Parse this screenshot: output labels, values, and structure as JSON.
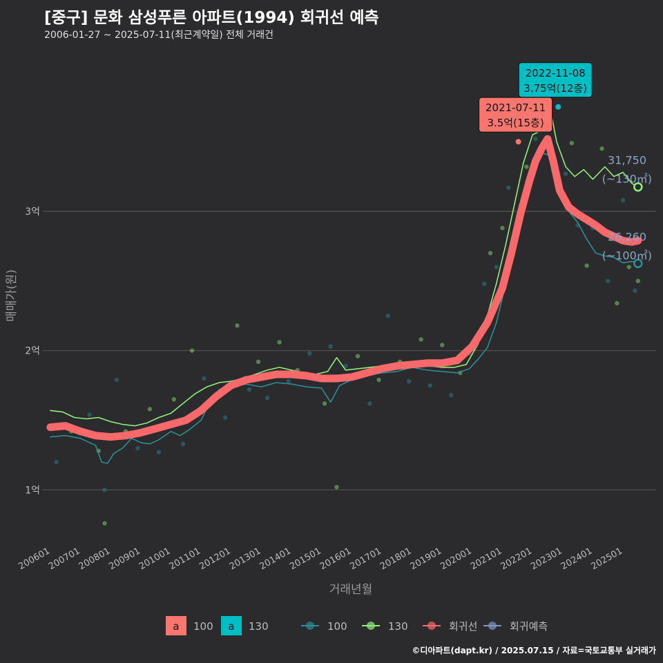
{
  "header": {
    "title": "[중구] 문화 삼성푸른 아파트(1994) 회귀선 예측",
    "subtitle": "2006-01-27 ~ 2025-07-11(최근계약일) 전체 거래건"
  },
  "footer": {
    "credit": "©디아파트(dapt.kr) / 2025.07.15 / 자료=국토교통부 실거래가"
  },
  "colors": {
    "background": "#2b2b2d",
    "series_100": "#2a8f96",
    "series_130": "#90ee7a",
    "regression": "#f8696b",
    "forecast": "#7f95c8",
    "label_100_fill": "#f8766d",
    "label_130_fill": "#00bfc4",
    "end_label": "#8aa6c8"
  },
  "chart_data": {
    "type": "line",
    "xlabel": "거래년월",
    "ylabel": "매매가(원)",
    "ylim": [
      6000,
      4200
    ],
    "x_ticks": [
      "200601",
      "200701",
      "200801",
      "200901",
      "201001",
      "201101",
      "201201",
      "201301",
      "201401",
      "201501",
      "201601",
      "201701",
      "201801",
      "201901",
      "202001",
      "202101",
      "202201",
      "202301",
      "202401",
      "202501"
    ],
    "y_ticks": [
      {
        "value": 10000,
        "label": "1억"
      },
      {
        "value": 20000,
        "label": "2억"
      },
      {
        "value": 30000,
        "label": "3억"
      }
    ],
    "series": [
      {
        "name": "100",
        "points": [
          [
            2006.0,
            13800
          ],
          [
            2006.5,
            13900
          ],
          [
            2007.0,
            13700
          ],
          [
            2007.2,
            13500
          ],
          [
            2007.5,
            13200
          ],
          [
            2007.7,
            12000
          ],
          [
            2007.9,
            11900
          ],
          [
            2008.1,
            12600
          ],
          [
            2008.4,
            13000
          ],
          [
            2008.7,
            13700
          ],
          [
            2009.0,
            13400
          ],
          [
            2009.3,
            13300
          ],
          [
            2009.6,
            13600
          ],
          [
            2010.0,
            14200
          ],
          [
            2010.3,
            13900
          ],
          [
            2010.6,
            14300
          ],
          [
            2011.0,
            15000
          ],
          [
            2011.3,
            16300
          ],
          [
            2011.6,
            17200
          ],
          [
            2012.0,
            17400
          ],
          [
            2012.5,
            17600
          ],
          [
            2013.0,
            17400
          ],
          [
            2013.5,
            17700
          ],
          [
            2014.0,
            17600
          ],
          [
            2014.5,
            17400
          ],
          [
            2015.0,
            17300
          ],
          [
            2015.3,
            16300
          ],
          [
            2015.6,
            17500
          ],
          [
            2016.0,
            17900
          ],
          [
            2016.5,
            18200
          ],
          [
            2017.0,
            18400
          ],
          [
            2017.5,
            18500
          ],
          [
            2018.0,
            18800
          ],
          [
            2018.5,
            18600
          ],
          [
            2019.0,
            18500
          ],
          [
            2019.5,
            18400
          ],
          [
            2019.9,
            18700
          ],
          [
            2020.2,
            19400
          ],
          [
            2020.5,
            20200
          ],
          [
            2020.8,
            22000
          ],
          [
            2021.0,
            23800
          ],
          [
            2021.3,
            26500
          ],
          [
            2021.6,
            29500
          ],
          [
            2021.9,
            31500
          ],
          [
            2022.1,
            33500
          ],
          [
            2022.3,
            34200
          ],
          [
            2022.6,
            34000
          ],
          [
            2022.9,
            32000
          ],
          [
            2023.2,
            30000
          ],
          [
            2023.5,
            29200
          ],
          [
            2023.8,
            28000
          ],
          [
            2024.1,
            27000
          ],
          [
            2024.4,
            26800
          ],
          [
            2024.7,
            26700
          ],
          [
            2025.0,
            26300
          ],
          [
            2025.3,
            26400
          ],
          [
            2025.5,
            26260
          ]
        ],
        "end_label": "26,260",
        "end_sub": "(~100㎡)"
      },
      {
        "name": "130",
        "points": [
          [
            2006.0,
            15700
          ],
          [
            2006.4,
            15600
          ],
          [
            2006.8,
            15200
          ],
          [
            2007.2,
            15100
          ],
          [
            2007.6,
            15200
          ],
          [
            2008.0,
            14900
          ],
          [
            2008.4,
            14700
          ],
          [
            2008.8,
            14600
          ],
          [
            2009.2,
            14800
          ],
          [
            2009.6,
            15200
          ],
          [
            2010.0,
            15500
          ],
          [
            2010.4,
            16200
          ],
          [
            2010.8,
            16900
          ],
          [
            2011.2,
            17400
          ],
          [
            2011.6,
            17700
          ],
          [
            2012.0,
            17800
          ],
          [
            2012.4,
            18000
          ],
          [
            2012.8,
            18300
          ],
          [
            2013.2,
            18600
          ],
          [
            2013.6,
            18800
          ],
          [
            2014.0,
            18600
          ],
          [
            2014.4,
            18400
          ],
          [
            2014.8,
            18300
          ],
          [
            2015.2,
            18500
          ],
          [
            2015.5,
            19500
          ],
          [
            2015.8,
            18600
          ],
          [
            2016.2,
            18700
          ],
          [
            2016.6,
            18800
          ],
          [
            2017.0,
            18900
          ],
          [
            2017.4,
            18900
          ],
          [
            2017.8,
            19000
          ],
          [
            2018.2,
            19000
          ],
          [
            2018.6,
            18900
          ],
          [
            2019.0,
            18800
          ],
          [
            2019.4,
            18800
          ],
          [
            2019.8,
            19000
          ],
          [
            2020.2,
            20500
          ],
          [
            2020.5,
            22500
          ],
          [
            2020.8,
            24800
          ],
          [
            2021.1,
            27500
          ],
          [
            2021.4,
            30500
          ],
          [
            2021.7,
            33500
          ],
          [
            2022.0,
            35500
          ],
          [
            2022.3,
            35800
          ],
          [
            2022.6,
            37200
          ],
          [
            2022.8,
            35000
          ],
          [
            2023.1,
            33200
          ],
          [
            2023.4,
            32500
          ],
          [
            2023.7,
            33000
          ],
          [
            2024.0,
            32300
          ],
          [
            2024.4,
            33200
          ],
          [
            2024.7,
            32500
          ],
          [
            2025.0,
            32800
          ],
          [
            2025.3,
            32000
          ],
          [
            2025.5,
            31750
          ]
        ],
        "end_label": "31,750",
        "end_sub": "(~130㎡)"
      },
      {
        "name": "회귀선",
        "points": [
          [
            2006.0,
            14500
          ],
          [
            2006.5,
            14600
          ],
          [
            2007.0,
            14200
          ],
          [
            2007.5,
            13900
          ],
          [
            2008.0,
            13800
          ],
          [
            2008.5,
            13900
          ],
          [
            2009.0,
            14100
          ],
          [
            2009.5,
            14400
          ],
          [
            2010.0,
            14700
          ],
          [
            2010.5,
            15000
          ],
          [
            2011.0,
            15700
          ],
          [
            2011.5,
            16700
          ],
          [
            2012.0,
            17500
          ],
          [
            2012.5,
            17900
          ],
          [
            2013.0,
            18100
          ],
          [
            2013.5,
            18300
          ],
          [
            2014.0,
            18300
          ],
          [
            2014.5,
            18200
          ],
          [
            2015.0,
            18000
          ],
          [
            2015.5,
            18000
          ],
          [
            2016.0,
            18100
          ],
          [
            2016.5,
            18400
          ],
          [
            2017.0,
            18700
          ],
          [
            2017.5,
            18900
          ],
          [
            2018.0,
            19000
          ],
          [
            2018.5,
            19100
          ],
          [
            2019.0,
            19100
          ],
          [
            2019.5,
            19300
          ],
          [
            2020.0,
            20300
          ],
          [
            2020.5,
            22000
          ],
          [
            2021.0,
            24500
          ],
          [
            2021.3,
            27000
          ],
          [
            2021.6,
            29800
          ],
          [
            2021.9,
            32200
          ],
          [
            2022.1,
            33600
          ],
          [
            2022.3,
            34500
          ],
          [
            2022.5,
            35200
          ],
          [
            2022.7,
            33500
          ],
          [
            2022.9,
            31500
          ],
          [
            2023.2,
            30300
          ],
          [
            2023.5,
            29800
          ],
          [
            2023.8,
            29400
          ],
          [
            2024.1,
            29000
          ],
          [
            2024.4,
            28500
          ],
          [
            2024.7,
            28200
          ],
          [
            2025.0,
            27900
          ],
          [
            2025.3,
            27800
          ],
          [
            2025.5,
            27900
          ]
        ]
      }
    ],
    "scatter": [
      [
        2006.2,
        12000
      ],
      [
        2006.7,
        14200
      ],
      [
        2007.3,
        15400
      ],
      [
        2007.6,
        12800
      ],
      [
        2007.8,
        10000
      ],
      [
        2007.8,
        7600
      ],
      [
        2008.2,
        17900
      ],
      [
        2008.5,
        14200
      ],
      [
        2008.9,
        13000
      ],
      [
        2009.3,
        15800
      ],
      [
        2009.6,
        12700
      ],
      [
        2010.1,
        16500
      ],
      [
        2010.4,
        13300
      ],
      [
        2010.7,
        20000
      ],
      [
        2011.1,
        18000
      ],
      [
        2011.5,
        16800
      ],
      [
        2011.8,
        15200
      ],
      [
        2012.2,
        21800
      ],
      [
        2012.6,
        17200
      ],
      [
        2012.9,
        19200
      ],
      [
        2013.2,
        16600
      ],
      [
        2013.6,
        20600
      ],
      [
        2013.9,
        17800
      ],
      [
        2014.2,
        18600
      ],
      [
        2014.6,
        19800
      ],
      [
        2015.1,
        16200
      ],
      [
        2015.3,
        20300
      ],
      [
        2015.5,
        10200
      ],
      [
        2015.8,
        18900
      ],
      [
        2016.2,
        19600
      ],
      [
        2016.6,
        16200
      ],
      [
        2016.9,
        17900
      ],
      [
        2017.2,
        22500
      ],
      [
        2017.6,
        19200
      ],
      [
        2017.9,
        17800
      ],
      [
        2018.3,
        20800
      ],
      [
        2018.6,
        17500
      ],
      [
        2019.0,
        20400
      ],
      [
        2019.3,
        16800
      ],
      [
        2019.6,
        18400
      ],
      [
        2019.9,
        19800
      ],
      [
        2020.2,
        21000
      ],
      [
        2020.4,
        24800
      ],
      [
        2020.6,
        27000
      ],
      [
        2020.8,
        26000
      ],
      [
        2021.0,
        28800
      ],
      [
        2021.2,
        31700
      ],
      [
        2021.4,
        28000
      ],
      [
        2021.6,
        30400
      ],
      [
        2021.8,
        33200
      ],
      [
        2022.1,
        35200
      ],
      [
        2022.4,
        36500
      ],
      [
        2022.6,
        34800
      ],
      [
        2022.9,
        31800
      ],
      [
        2023.1,
        32700
      ],
      [
        2023.3,
        34900
      ],
      [
        2023.5,
        29000
      ],
      [
        2023.8,
        26100
      ],
      [
        2024.0,
        28800
      ],
      [
        2024.3,
        34500
      ],
      [
        2024.5,
        25000
      ],
      [
        2024.8,
        23400
      ],
      [
        2025.0,
        30800
      ],
      [
        2025.2,
        26000
      ],
      [
        2025.4,
        24300
      ],
      [
        2025.5,
        25000
      ]
    ],
    "annotations": [
      {
        "date": "2021-07-11",
        "price": "3.5억(15층)",
        "x": 2021.53,
        "y": 35000,
        "color": "label_100_fill"
      },
      {
        "date": "2022-11-08",
        "price": "3.75억(12층)",
        "x": 2022.85,
        "y": 37500,
        "color": "label_130_fill"
      }
    ],
    "legend": {
      "position": "bottom",
      "fill_items": [
        {
          "key": "a",
          "label": "100",
          "color": "label_100_fill"
        },
        {
          "key": "a",
          "label": "130",
          "color": "label_130_fill"
        }
      ],
      "line_items": [
        {
          "label": "100",
          "color": "series_100"
        },
        {
          "label": "130",
          "color": "series_130"
        },
        {
          "label": "회귀선",
          "color": "regression"
        },
        {
          "label": "회귀예측",
          "color": "forecast"
        }
      ]
    }
  }
}
